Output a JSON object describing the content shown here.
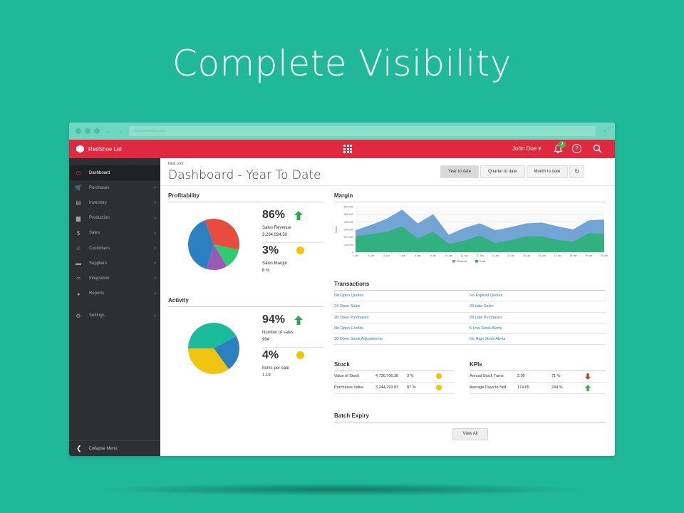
{
  "headline": "Complete Visibility",
  "browser": {
    "url": "www.inventory.com"
  },
  "app": {
    "brand": "RedShoe Ltd",
    "user": "John Doe ▾",
    "notifications": "2",
    "help": "?"
  },
  "sidebar": {
    "items": [
      {
        "label": "Dashboard",
        "icon": "dashboard-icon",
        "glyph": "◷"
      },
      {
        "label": "Purchases",
        "icon": "cart-icon",
        "glyph": "🛒"
      },
      {
        "label": "Inventory",
        "icon": "box-icon",
        "glyph": "▤"
      },
      {
        "label": "Production",
        "icon": "factory-icon",
        "glyph": "▆"
      },
      {
        "label": "Sales",
        "icon": "dollar-icon",
        "glyph": "$"
      },
      {
        "label": "Customers",
        "icon": "users-icon",
        "glyph": "☺"
      },
      {
        "label": "Suppliers",
        "icon": "truck-icon",
        "glyph": "▬"
      },
      {
        "label": "Integration",
        "icon": "link-icon",
        "glyph": "∞"
      },
      {
        "label": "Reports",
        "icon": "pie-icon",
        "glyph": "◕"
      },
      {
        "label": "Settings",
        "icon": "gear-icon",
        "glyph": "⚙"
      }
    ],
    "collapse": "Collapse Menu"
  },
  "main": {
    "breadcrumb": "lokal.com",
    "title": "Dashboard - Year To Date",
    "periods": [
      "Year to date",
      "Quarter to date",
      "Month to date"
    ],
    "refresh": "↻"
  },
  "profitability": {
    "title": "Profitability",
    "stat1": {
      "pct": "86%",
      "label": "Sales Revenue",
      "value": "3,294,924.50"
    },
    "stat2": {
      "pct": "3%",
      "label": "Sales Margin",
      "value": "6 %"
    },
    "pie": [
      {
        "value": 34,
        "color": "#e74c3c"
      },
      {
        "value": 13,
        "color": "#2ecc71"
      },
      {
        "value": 13,
        "color": "#9b59b6"
      },
      {
        "value": 40,
        "color": "#2b80c0"
      }
    ]
  },
  "activity": {
    "title": "Activity",
    "stat1": {
      "pct": "94%",
      "label": "Number of sales",
      "value": "994"
    },
    "stat2": {
      "pct": "4%",
      "label": "Items per sale",
      "value": "1.19"
    },
    "pie": [
      {
        "value": 42,
        "color": "#1abc9c"
      },
      {
        "value": 23,
        "color": "#2b80c0"
      },
      {
        "value": 35,
        "color": "#f1c40f"
      }
    ]
  },
  "margin": {
    "title": "Margin",
    "chart_data": {
      "type": "area",
      "x": [
        "4 Jan",
        "5 Jan",
        "6 Jan",
        "7 Jan",
        "8 Jan",
        "9 Jan",
        "10 Jan",
        "11 Jan",
        "12 Jan",
        "13 Jan",
        "14 Jan",
        "15 Jan",
        "16 Jan",
        "17 Jan",
        "18 Jan",
        "19 Jan",
        "20 Jan"
      ],
      "yticks": [
        "600,000",
        "500,000",
        "400,000",
        "300,000",
        "200,000",
        "100,000",
        "0"
      ],
      "ylabel": "Value",
      "ylim": [
        0,
        600000
      ],
      "series": [
        {
          "name": "Revenue",
          "color": "#6a9fd4",
          "values": [
            290000,
            360000,
            440000,
            560000,
            380000,
            500000,
            230000,
            320000,
            380000,
            290000,
            330000,
            380000,
            390000,
            340000,
            300000,
            420000,
            430000
          ]
        },
        {
          "name": "Profit",
          "color": "#2fb17a",
          "values": [
            210000,
            240000,
            270000,
            340000,
            180000,
            270000,
            110000,
            150000,
            220000,
            120000,
            160000,
            210000,
            210000,
            160000,
            140000,
            250000,
            240000
          ]
        }
      ],
      "legend": [
        "Revenue",
        "Profit"
      ]
    }
  },
  "transactions": {
    "title": "Transactions",
    "rows": [
      [
        "No Open Quotes",
        "No Expired Quotes"
      ],
      [
        "24 Open Sales",
        "24 Late Sales"
      ],
      [
        "28 Open Purchases",
        "28 Late Purchases"
      ],
      [
        "No Open Credits",
        "5 Low Stock Alerts"
      ],
      [
        "10 Open Stock Adjustments",
        "No High Stock Alerts"
      ]
    ]
  },
  "stock": {
    "title": "Stock",
    "rows": [
      {
        "label": "Value of Stock",
        "value": "4,736,706.38",
        "pct": "3 %"
      },
      {
        "label": "Purchases Value",
        "value": "3,244,293.83",
        "pct": "87 %"
      }
    ]
  },
  "kpis": {
    "title": "KPIs",
    "rows": [
      {
        "label": "Annual Stock Turns",
        "value": "2.09",
        "pct": "71 %",
        "trend": "down"
      },
      {
        "label": "Average Days to Sell",
        "value": "174.65",
        "pct": "244 %",
        "trend": "up"
      }
    ]
  },
  "batch": {
    "title": "Batch Expiry",
    "button": "View All"
  },
  "colors": {
    "accent": "#e0283e",
    "background": "#1fb99a",
    "sidebar": "#2c2f33",
    "up": "#2fa84f",
    "down": "#c0392b"
  }
}
